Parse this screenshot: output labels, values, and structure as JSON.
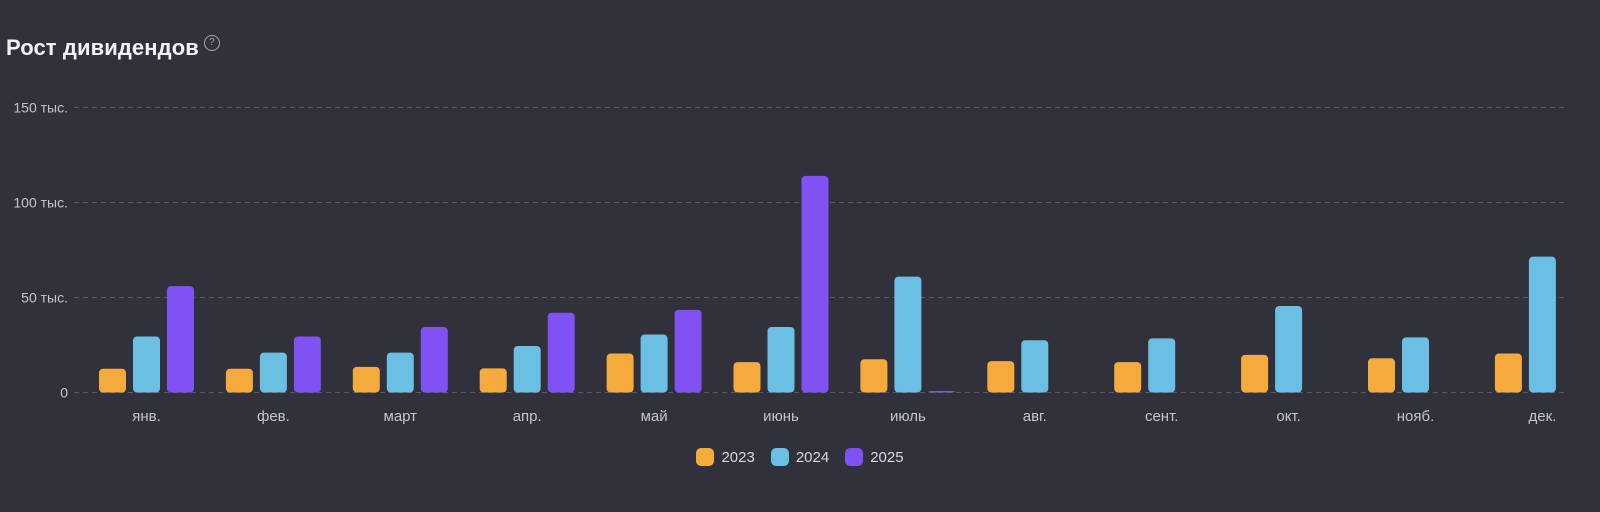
{
  "header": {
    "title": "Рост дивидендов",
    "help_icon": "question-circle-icon",
    "help_glyph": "?"
  },
  "chart_data": {
    "type": "bar",
    "title": "Рост дивидендов",
    "categories": [
      "янв.",
      "фев.",
      "март",
      "апр.",
      "май",
      "июнь",
      "июль",
      "авг.",
      "сент.",
      "окт.",
      "нояб.",
      "дек."
    ],
    "series": [
      {
        "name": "2023",
        "color": "#f4ab3b",
        "values": [
          12500,
          12500,
          13500,
          12700,
          20500,
          16000,
          17500,
          16500,
          16000,
          19800,
          18000,
          20500
        ]
      },
      {
        "name": "2024",
        "color": "#6abfe2",
        "values": [
          29500,
          21000,
          21000,
          24500,
          30500,
          34500,
          61000,
          27500,
          28500,
          45500,
          29000,
          71500
        ]
      },
      {
        "name": "2025",
        "color": "#8152f3",
        "values": [
          56000,
          29500,
          34500,
          42000,
          43500,
          114000,
          500,
          0,
          0,
          0,
          0,
          0
        ]
      }
    ],
    "yticks": [
      0,
      50000,
      100000,
      150000
    ],
    "ytick_labels": [
      "0",
      "50 тыс.",
      "100 тыс.",
      "150 тыс."
    ],
    "ylim": [
      0,
      150000
    ],
    "grid": "dashed horizontal",
    "legend_position": "bottom-center"
  }
}
